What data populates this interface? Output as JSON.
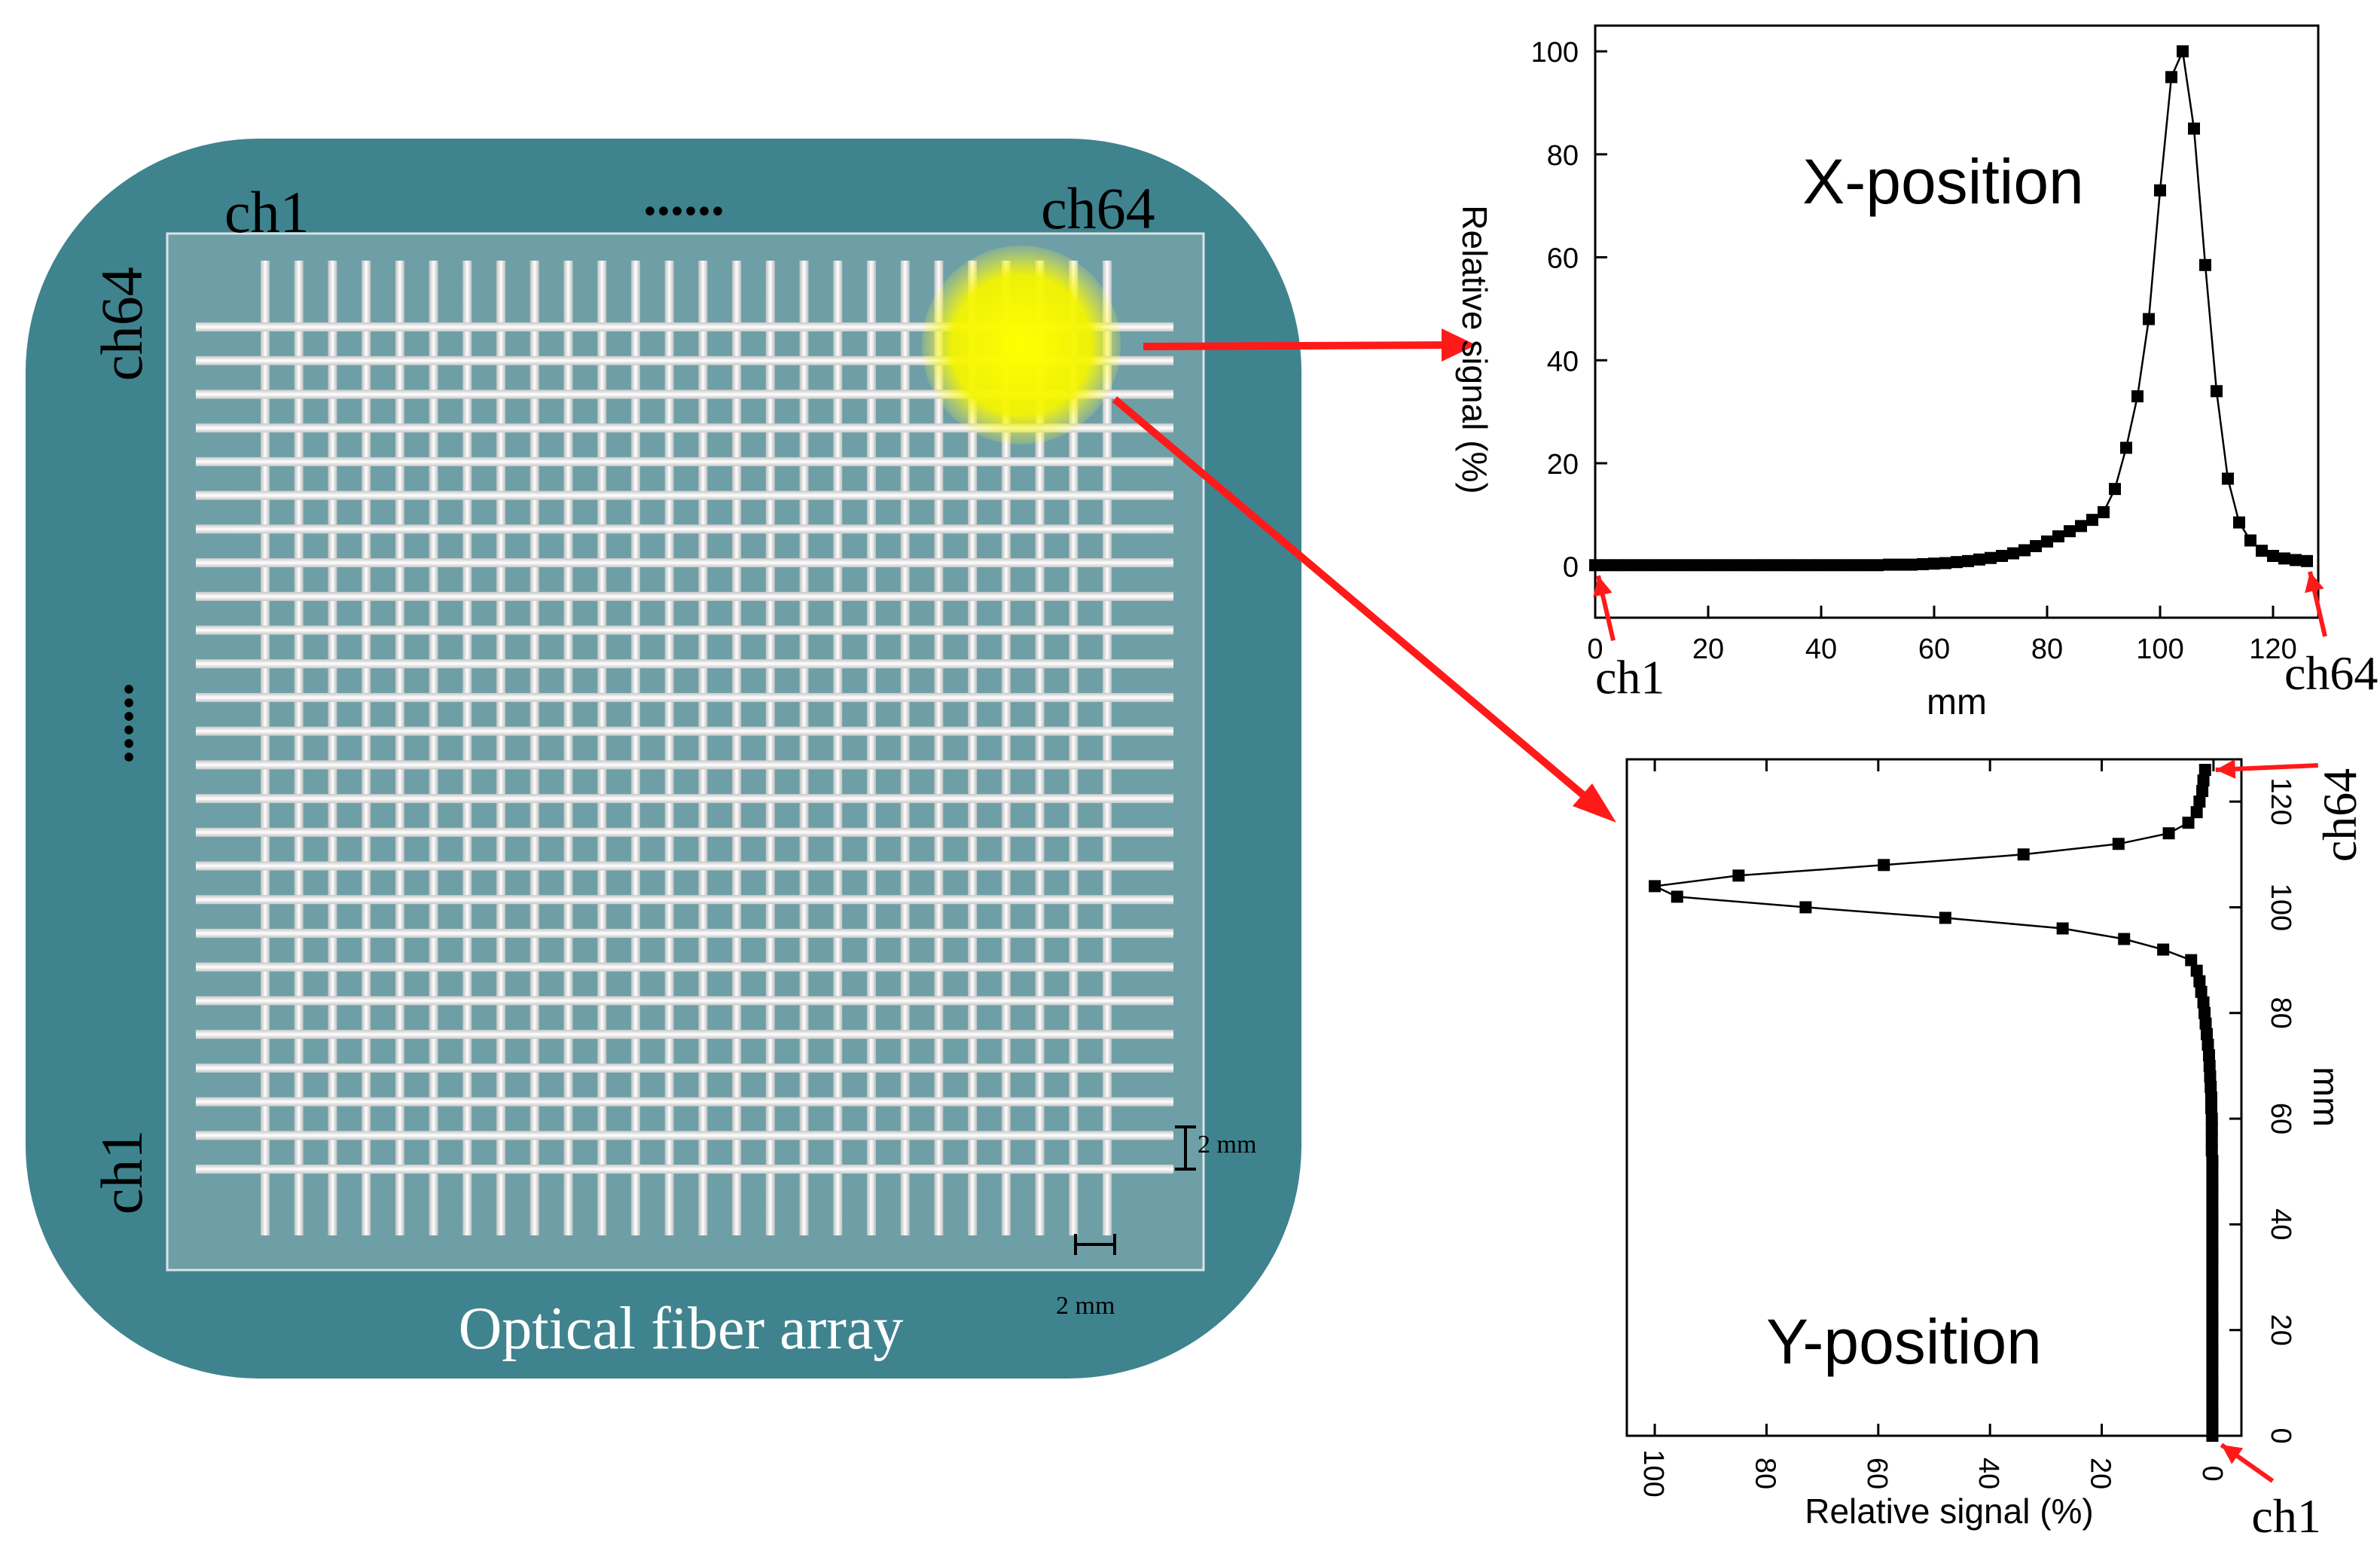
{
  "panel": {
    "title": "Optical fiber array",
    "top_left_label": "ch1",
    "top_right_label": "ch64",
    "top_dots": "......",
    "left_top_label": "ch64",
    "left_bottom_label": "ch1",
    "left_dots": "......",
    "pitch_label_vertical": "2 mm",
    "pitch_label_horizontal": "2 mm",
    "fiber_count_vertical": 26,
    "fiber_count_horizontal": 26,
    "spot": {
      "fraction_x": 0.81,
      "fraction_y": 0.11,
      "color": "#ffff00"
    }
  },
  "colors": {
    "panel_bg": "#3f838e",
    "array_bg": "#6e9fa6",
    "fiber": "#f0f0f0",
    "arrow": "#ff1a1a",
    "marker": "#000000"
  },
  "chart_data": [
    {
      "type": "line",
      "annotation": "X-position",
      "xlabel": "mm",
      "ylabel": "Relative signal (%)",
      "xlim": [
        0,
        128
      ],
      "ylim": [
        -10,
        105
      ],
      "xticks": [
        "0",
        "20",
        "40",
        "60",
        "80",
        "100",
        "120"
      ],
      "yticks": [
        "0",
        "20",
        "40",
        "60",
        "80",
        "100"
      ],
      "x": [
        0,
        2,
        4,
        6,
        8,
        10,
        12,
        14,
        16,
        18,
        20,
        22,
        24,
        26,
        28,
        30,
        32,
        34,
        36,
        38,
        40,
        42,
        44,
        46,
        48,
        50,
        52,
        54,
        56,
        58,
        60,
        62,
        64,
        66,
        68,
        70,
        72,
        74,
        76,
        78,
        80,
        82,
        84,
        86,
        88,
        90,
        92,
        94,
        96,
        98,
        100,
        102,
        104,
        106,
        108,
        110,
        112,
        114,
        116,
        118,
        120,
        122,
        124,
        126
      ],
      "values": [
        0.2,
        0.2,
        0.2,
        0.2,
        0.2,
        0.2,
        0.2,
        0.2,
        0.2,
        0.2,
        0.2,
        0.2,
        0.2,
        0.2,
        0.2,
        0.2,
        0.2,
        0.2,
        0.2,
        0.2,
        0.2,
        0.2,
        0.2,
        0.2,
        0.2,
        0.2,
        0.3,
        0.3,
        0.3,
        0.4,
        0.5,
        0.6,
        0.8,
        1.0,
        1.3,
        1.6,
        2.0,
        2.5,
        3.1,
        3.9,
        4.8,
        5.8,
        6.8,
        7.8,
        9.0,
        10.5,
        15.0,
        23.0,
        33.0,
        48.0,
        73.0,
        95.0,
        100.0,
        85.0,
        58.5,
        34.0,
        17.0,
        8.5,
        5.0,
        3.0,
        2.0,
        1.5,
        1.2,
        1.0
      ],
      "callouts": [
        {
          "text": "ch1",
          "at_x": 0
        },
        {
          "text": "ch64",
          "at_x": 126
        }
      ]
    },
    {
      "type": "line",
      "annotation": "Y-position",
      "xlabel": "Relative signal (%)",
      "ylabel": "mm",
      "xlim": [
        105,
        -5
      ],
      "ylim": [
        0,
        128
      ],
      "x_reversed": true,
      "xticks": [
        "100",
        "80",
        "60",
        "40",
        "20",
        "0"
      ],
      "yticks": [
        "0",
        "20",
        "40",
        "60",
        "80",
        "100",
        "120"
      ],
      "y": [
        0,
        2,
        4,
        6,
        8,
        10,
        12,
        14,
        16,
        18,
        20,
        22,
        24,
        26,
        28,
        30,
        32,
        34,
        36,
        38,
        40,
        42,
        44,
        46,
        48,
        50,
        52,
        54,
        56,
        58,
        60,
        62,
        64,
        66,
        68,
        70,
        72,
        74,
        76,
        78,
        80,
        82,
        84,
        86,
        88,
        90,
        92,
        94,
        96,
        98,
        100,
        102,
        104,
        106,
        108,
        110,
        112,
        114,
        116,
        118,
        120,
        122,
        124,
        126
      ],
      "values": [
        0.2,
        0.2,
        0.2,
        0.2,
        0.2,
        0.2,
        0.2,
        0.2,
        0.2,
        0.2,
        0.2,
        0.2,
        0.2,
        0.2,
        0.2,
        0.2,
        0.2,
        0.2,
        0.2,
        0.2,
        0.2,
        0.2,
        0.2,
        0.2,
        0.2,
        0.2,
        0.2,
        0.3,
        0.3,
        0.3,
        0.3,
        0.4,
        0.4,
        0.5,
        0.6,
        0.7,
        0.8,
        1.0,
        1.2,
        1.4,
        1.6,
        1.8,
        2.2,
        2.5,
        3.0,
        4.0,
        9.0,
        16.0,
        27.0,
        48.0,
        73.0,
        96.0,
        100.0,
        85.0,
        59.0,
        34.0,
        17.0,
        8.0,
        4.5,
        3.0,
        2.5,
        2.0,
        1.8,
        1.5
      ],
      "callouts": [
        {
          "text": "ch64",
          "at_y": 126
        },
        {
          "text": "ch1",
          "at_y": 0
        }
      ]
    }
  ]
}
